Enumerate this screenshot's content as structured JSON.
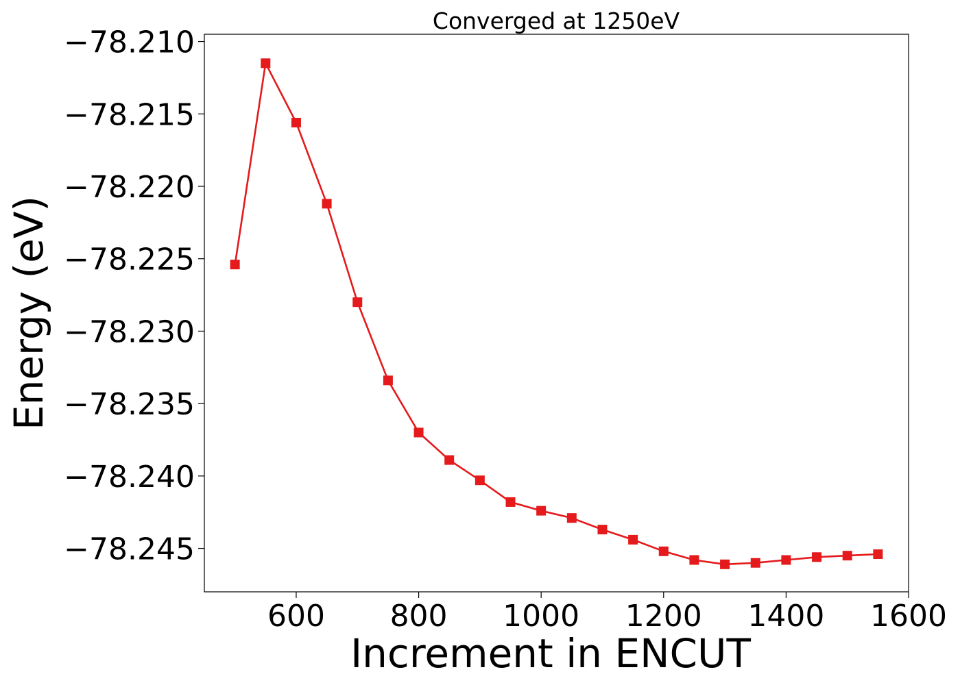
{
  "chart_data": {
    "type": "line",
    "title": "Converged at 1250eV",
    "xlabel": "Increment in ENCUT",
    "ylabel": "Energy (eV)",
    "xlim": [
      450,
      1600
    ],
    "ylim": [
      -78.248,
      -78.2095
    ],
    "xticks": [
      600,
      800,
      1000,
      1200,
      1400,
      1600
    ],
    "xtick_labels": [
      "600",
      "800",
      "1000",
      "1200",
      "1400",
      "1600"
    ],
    "yticks": [
      -78.21,
      -78.215,
      -78.22,
      -78.225,
      -78.23,
      -78.235,
      -78.24,
      -78.245
    ],
    "ytick_labels": [
      "−78.210",
      "−78.215",
      "−78.220",
      "−78.225",
      "−78.230",
      "−78.235",
      "−78.240",
      "−78.245"
    ],
    "grid": false,
    "series": [
      {
        "color": "#e41a1c",
        "marker": "square",
        "x": [
          500,
          550,
          600,
          650,
          700,
          750,
          800,
          850,
          900,
          950,
          1000,
          1050,
          1100,
          1150,
          1200,
          1250,
          1300,
          1350,
          1400,
          1450,
          1500,
          1550
        ],
        "y": [
          -78.2254,
          -78.2115,
          -78.2156,
          -78.2212,
          -78.228,
          -78.2334,
          -78.237,
          -78.2389,
          -78.2403,
          -78.2418,
          -78.2424,
          -78.2429,
          -78.2437,
          -78.2444,
          -78.2452,
          -78.2458,
          -78.2461,
          -78.246,
          -78.2458,
          -78.2456,
          -78.2455,
          -78.2454
        ]
      }
    ]
  }
}
